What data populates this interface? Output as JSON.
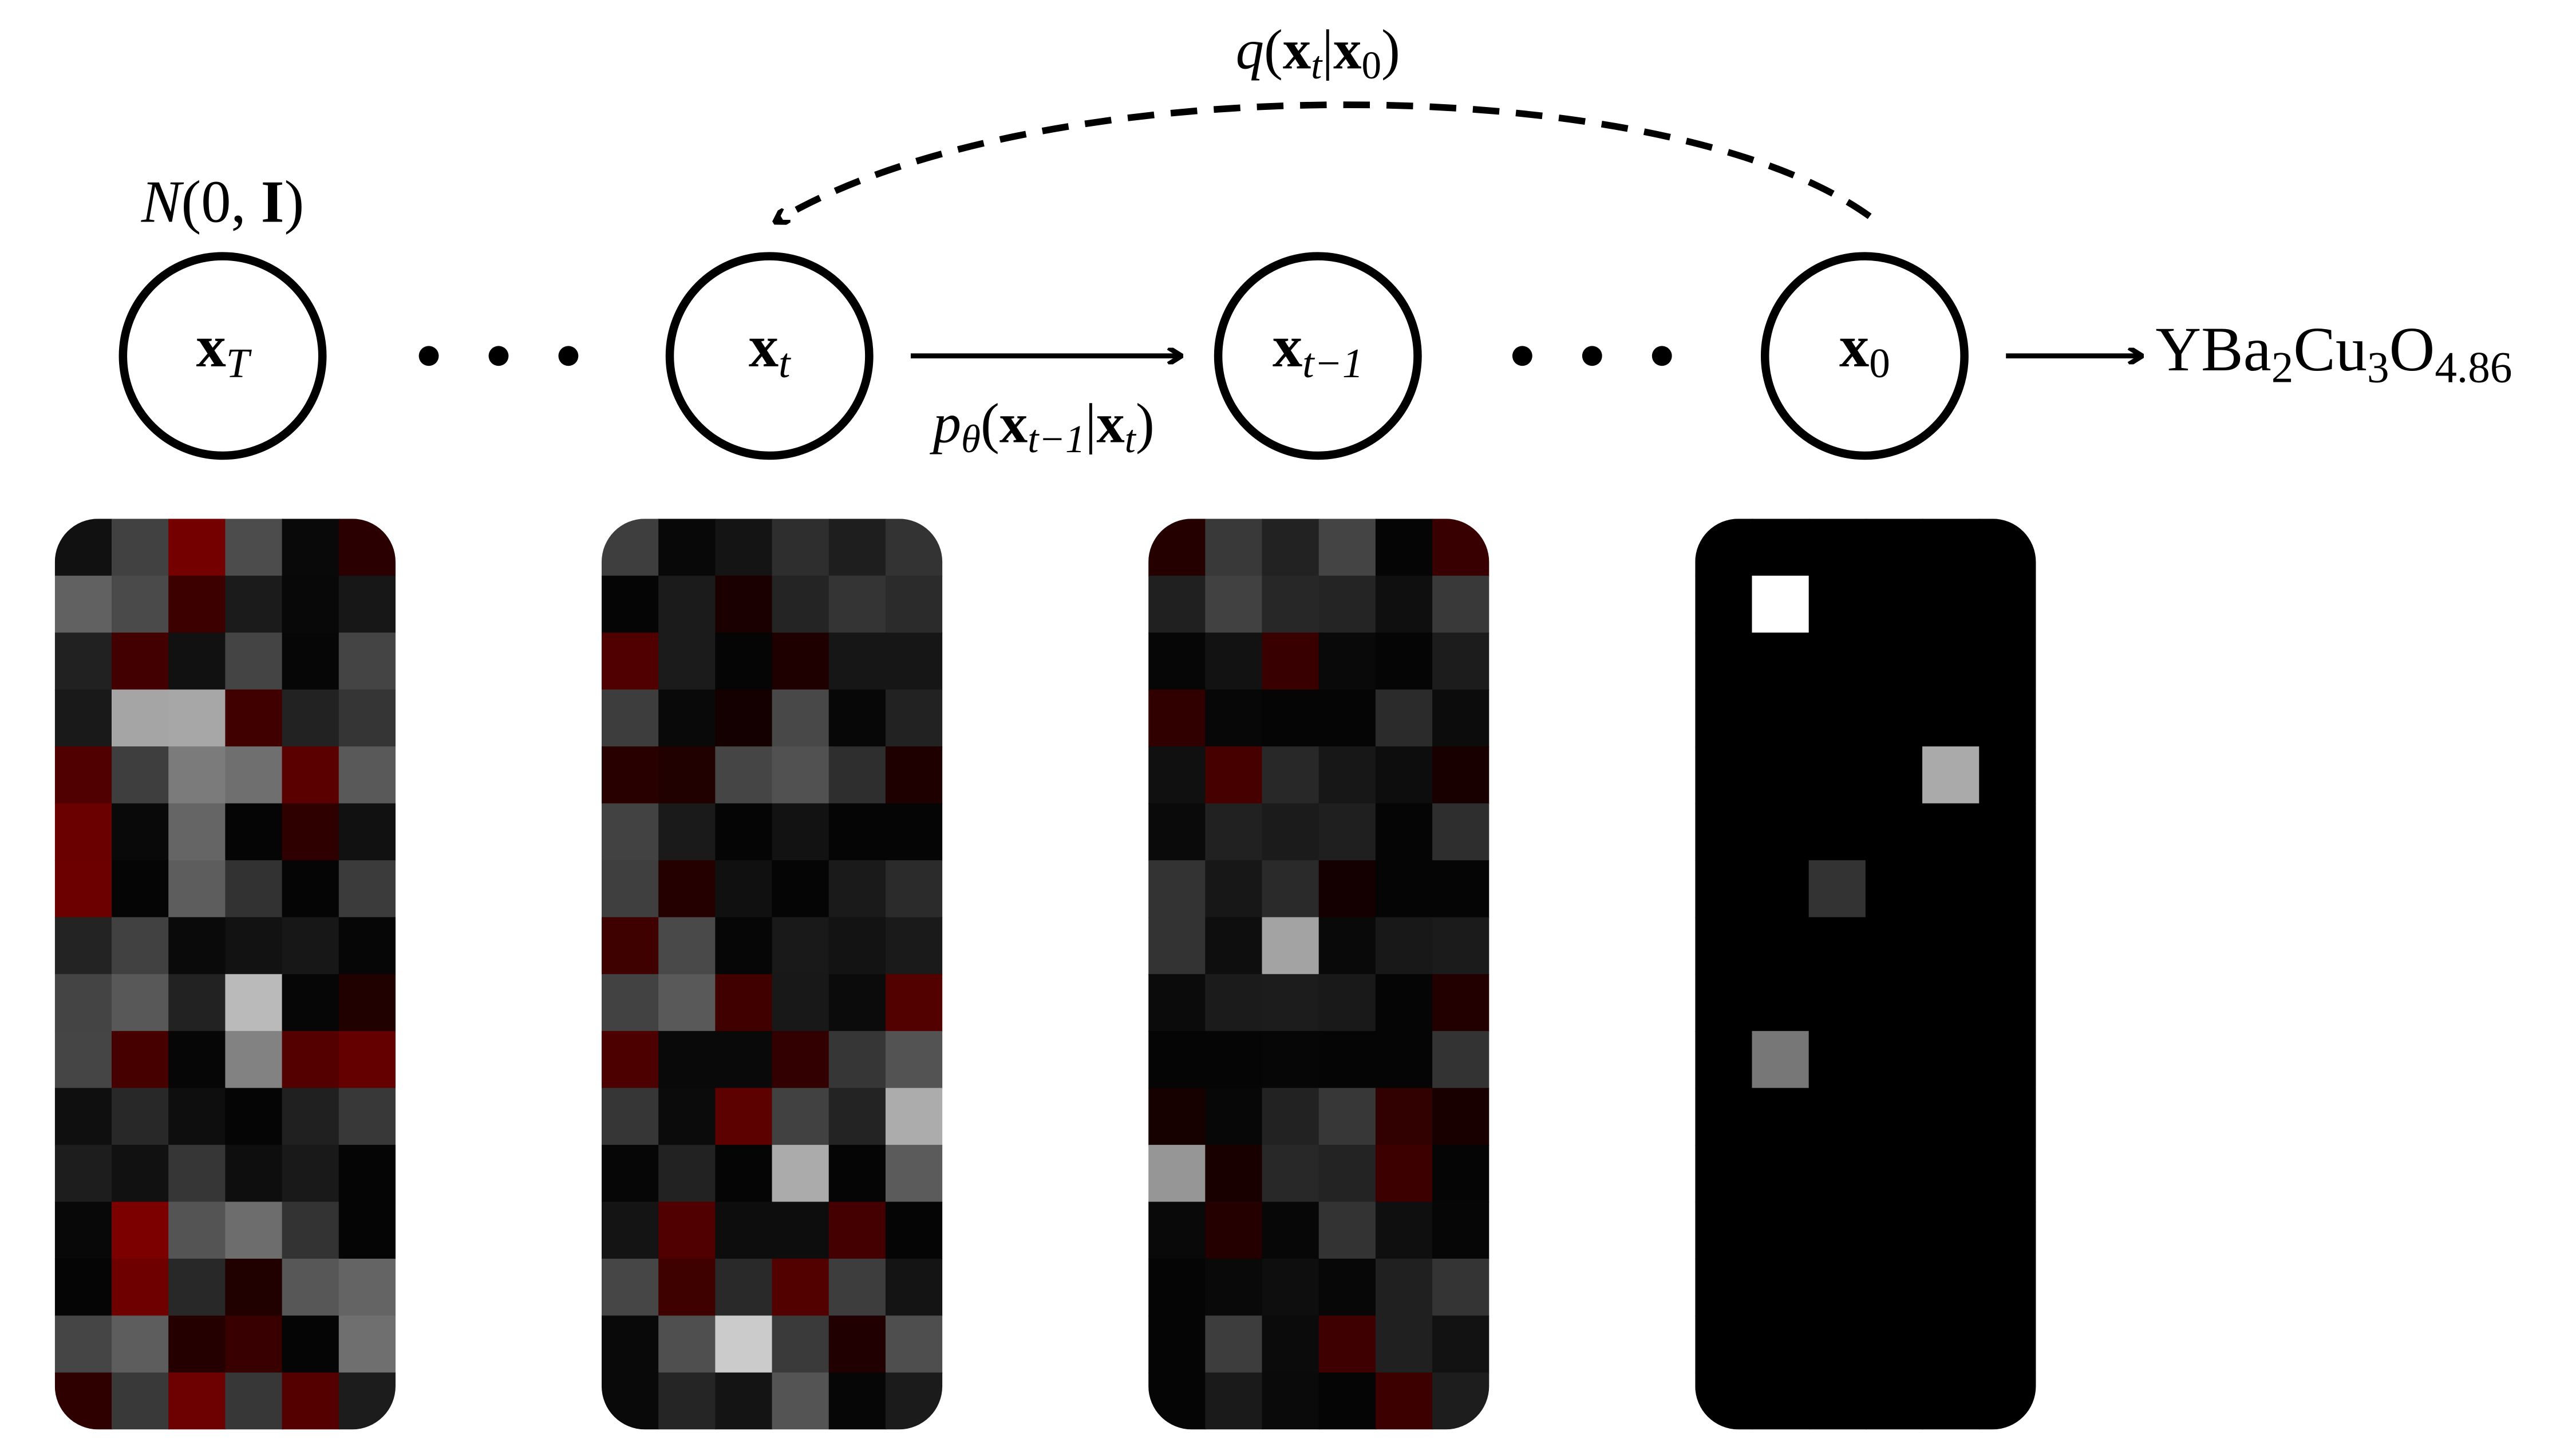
{
  "prior": [
    {
      "text": "N",
      "italic": true
    },
    {
      "text": "(0, "
    },
    {
      "text": "I",
      "bold": true
    },
    {
      "text": ")"
    }
  ],
  "nodes": [
    [
      {
        "text": "x",
        "bold": true
      },
      {
        "text": "T",
        "sub": true,
        "italic": true
      }
    ],
    [
      {
        "text": "x",
        "bold": true
      },
      {
        "text": "t",
        "sub": true,
        "italic": true
      }
    ],
    [
      {
        "text": "x",
        "bold": true
      },
      {
        "text": "t−1",
        "sub": true,
        "italic": true
      }
    ],
    [
      {
        "text": "x",
        "bold": true
      },
      {
        "text": "0",
        "sub": true
      }
    ]
  ],
  "reverse_process": [
    {
      "text": "p",
      "italic": true
    },
    {
      "text": "θ",
      "sub": true,
      "italic": true
    },
    {
      "text": "("
    },
    {
      "text": "x",
      "bold": true
    },
    {
      "text": "t−1",
      "sub": true,
      "italic": true
    },
    {
      "text": "|"
    },
    {
      "text": "x",
      "bold": true
    },
    {
      "text": "t",
      "sub": true,
      "italic": true
    },
    {
      "text": ")"
    }
  ],
  "forward_process": [
    {
      "text": "q",
      "italic": true
    },
    {
      "text": "("
    },
    {
      "text": "x",
      "bold": true
    },
    {
      "text": "t",
      "sub": true,
      "italic": true
    },
    {
      "text": "|"
    },
    {
      "text": "x",
      "bold": true
    },
    {
      "text": "0",
      "sub": true
    },
    {
      "text": ")"
    }
  ],
  "output": [
    {
      "text": "YBa"
    },
    {
      "text": "2",
      "sub": true
    },
    {
      "text": "Cu"
    },
    {
      "text": "3",
      "sub": true
    },
    {
      "text": "O"
    },
    {
      "text": "4.86",
      "sub": true
    }
  ]
}
